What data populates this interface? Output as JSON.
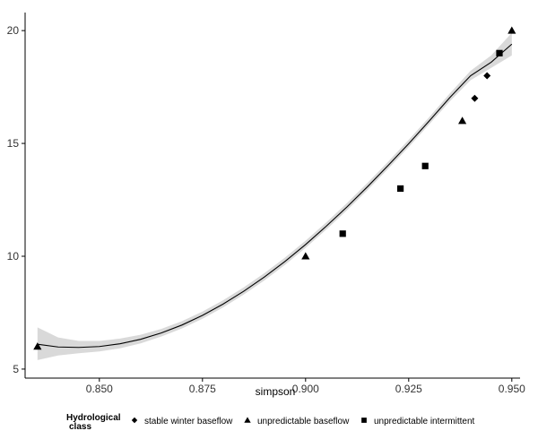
{
  "chart_data": {
    "type": "scatter",
    "title": "",
    "xlabel": "simpson",
    "ylabel": "",
    "xlim": [
      0.832,
      0.952
    ],
    "ylim": [
      4.6,
      20.8
    ],
    "x_ticks": [
      0.85,
      0.875,
      0.9,
      0.925,
      0.95
    ],
    "x_tick_labels": [
      "0.850",
      "0.875",
      "0.900",
      "0.925",
      "0.950"
    ],
    "y_ticks": [
      5,
      10,
      15,
      20
    ],
    "y_tick_labels": [
      "5",
      "10",
      "15",
      "20"
    ],
    "grid": false,
    "legend": {
      "title": "Hydrological class",
      "title_lines": [
        "Hydrological",
        "class"
      ],
      "position": "bottom",
      "entries": [
        {
          "name": "stable winter baseflow",
          "marker": "diamond"
        },
        {
          "name": "unpredictable baseflow",
          "marker": "triangle"
        },
        {
          "name": "unpredictable intermittent",
          "marker": "square"
        }
      ]
    },
    "series": [
      {
        "name": "stable winter baseflow",
        "marker": "diamond",
        "x": [
          0.941,
          0.944
        ],
        "y": [
          17,
          18
        ]
      },
      {
        "name": "unpredictable baseflow",
        "marker": "triangle",
        "x": [
          0.835,
          0.9,
          0.938,
          0.95
        ],
        "y": [
          6,
          10,
          16,
          20
        ]
      },
      {
        "name": "unpredictable intermittent",
        "marker": "square",
        "x": [
          0.909,
          0.923,
          0.929,
          0.947
        ],
        "y": [
          11,
          13,
          14,
          19
        ]
      }
    ],
    "smooth": {
      "type": "loess",
      "color": "#000000",
      "band_color": "#d9d9d9",
      "x": [
        0.835,
        0.84,
        0.845,
        0.85,
        0.855,
        0.86,
        0.865,
        0.87,
        0.875,
        0.88,
        0.885,
        0.89,
        0.895,
        0.9,
        0.905,
        0.91,
        0.915,
        0.92,
        0.925,
        0.93,
        0.935,
        0.94,
        0.945,
        0.95
      ],
      "y": [
        6.1,
        5.98,
        5.96,
        6.0,
        6.12,
        6.32,
        6.6,
        6.95,
        7.38,
        7.88,
        8.45,
        9.08,
        9.77,
        10.52,
        11.33,
        12.18,
        13.08,
        14.02,
        14.99,
        16.0,
        17.04,
        18.0,
        18.6,
        19.4
      ],
      "lower": [
        5.4,
        5.6,
        5.7,
        5.78,
        5.92,
        6.14,
        6.44,
        6.8,
        7.23,
        7.73,
        8.3,
        8.93,
        9.62,
        10.37,
        11.18,
        12.03,
        12.93,
        13.87,
        14.84,
        15.85,
        16.87,
        17.8,
        18.35,
        18.9
      ],
      "upper": [
        6.85,
        6.4,
        6.25,
        6.25,
        6.35,
        6.52,
        6.78,
        7.12,
        7.55,
        8.05,
        8.62,
        9.25,
        9.94,
        10.69,
        11.5,
        12.35,
        13.25,
        14.19,
        15.16,
        16.17,
        17.22,
        18.22,
        18.9,
        19.9
      ]
    },
    "colors": {
      "points": "#000000",
      "axis": "#000000"
    }
  }
}
